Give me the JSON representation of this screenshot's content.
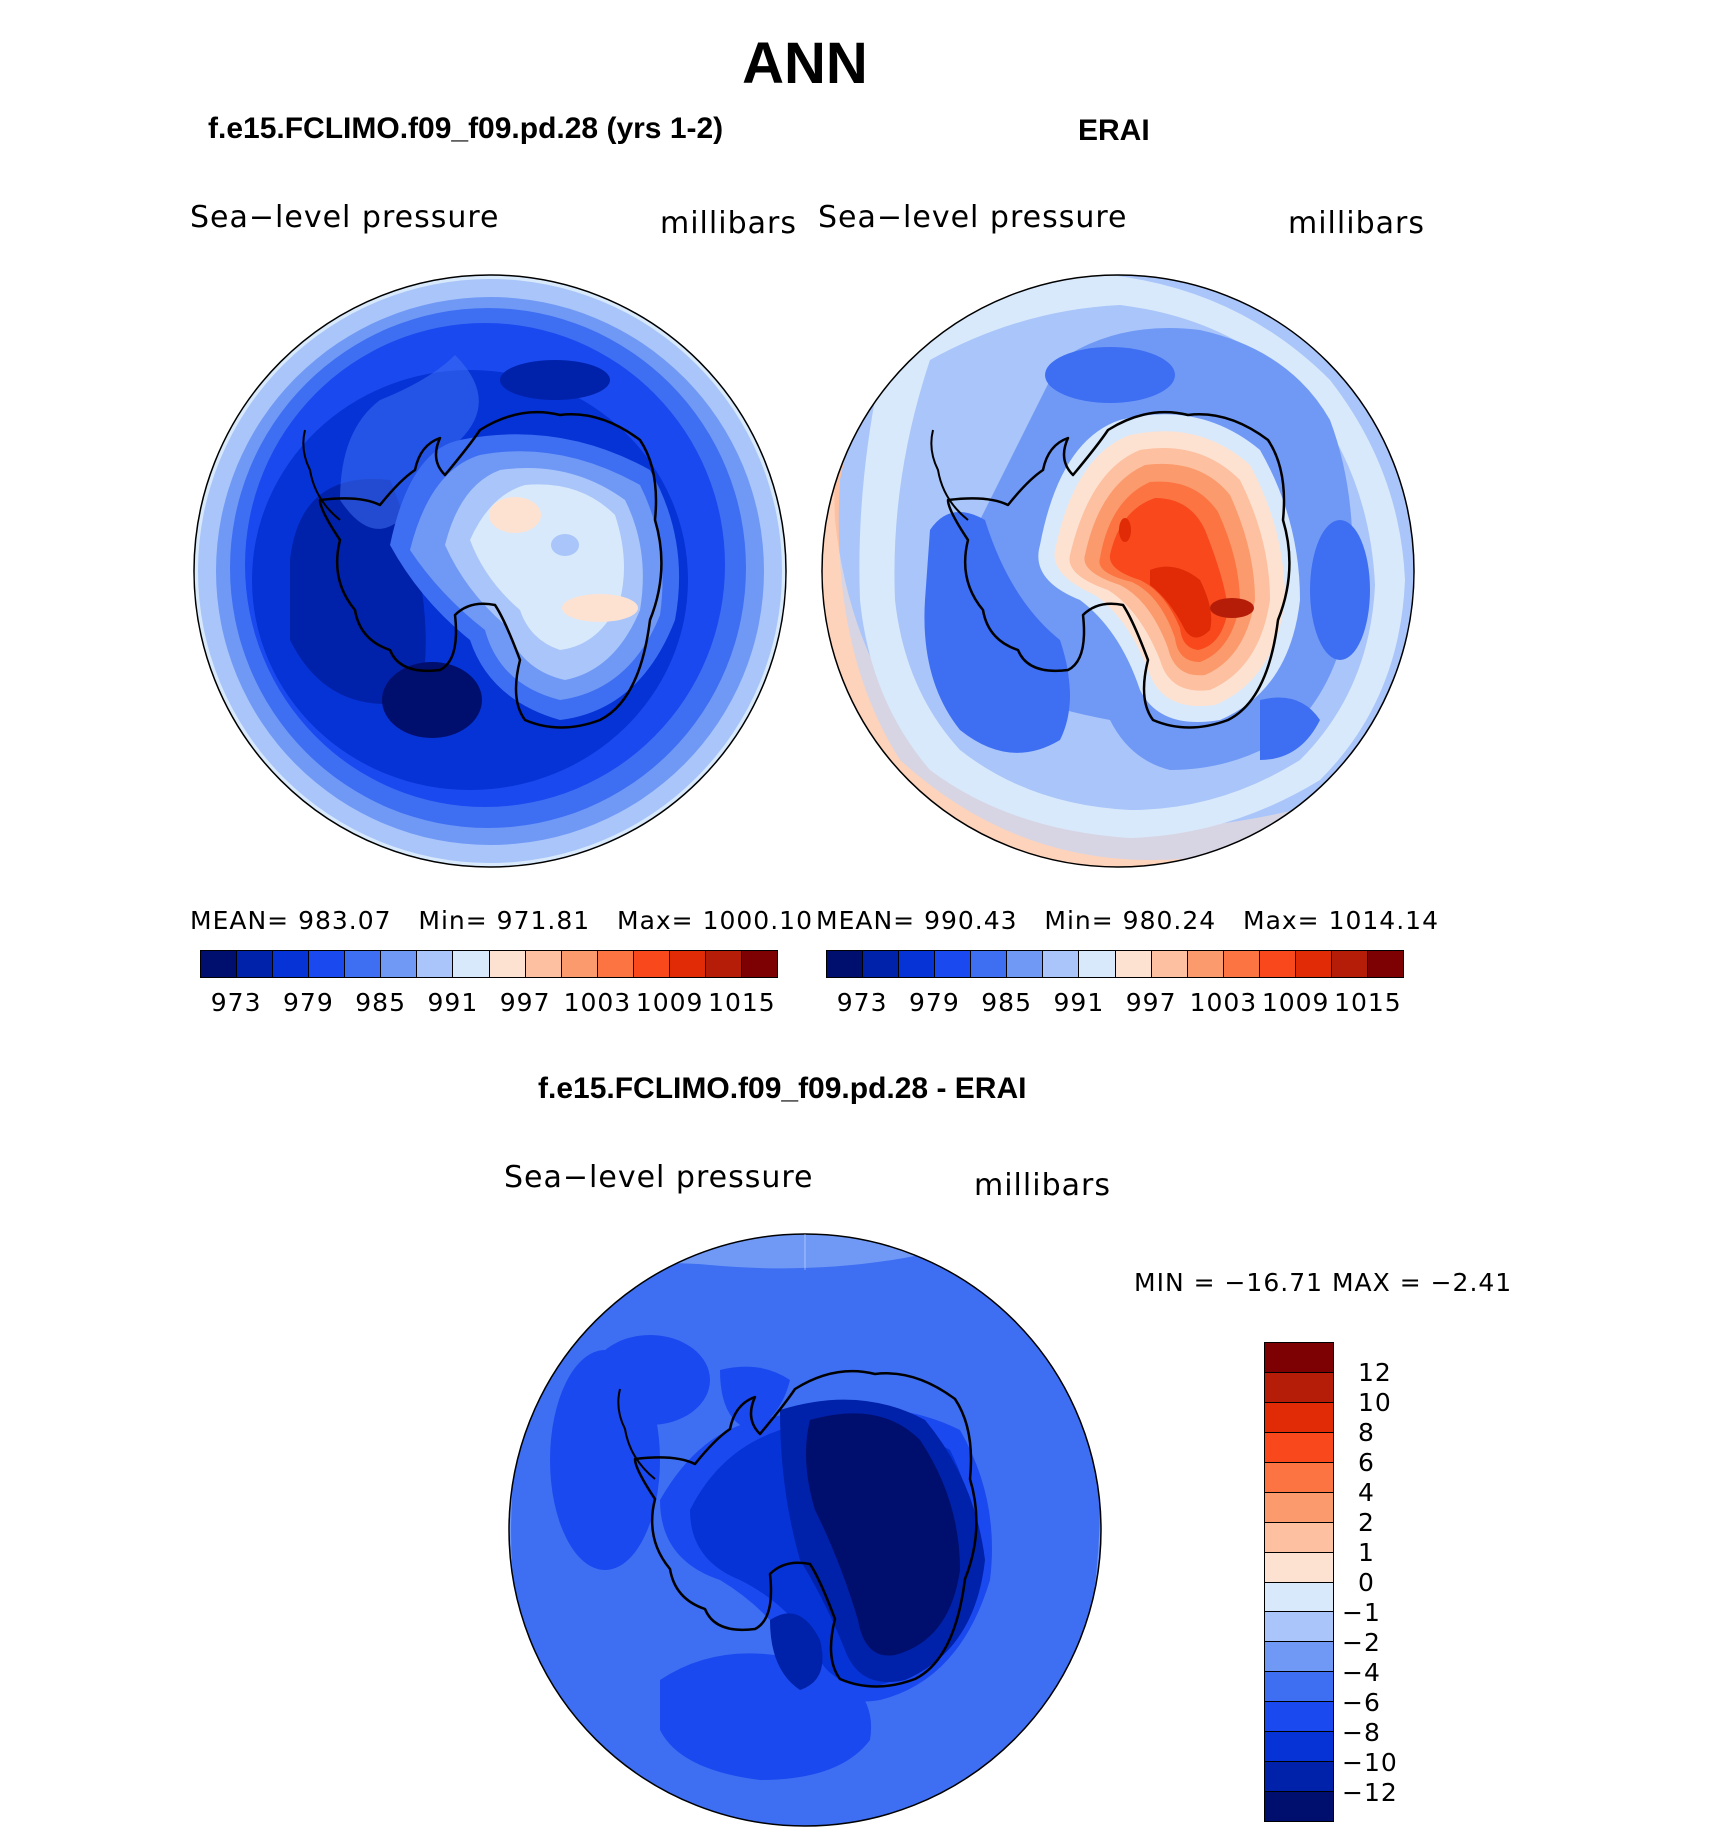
{
  "main_title": "ANN",
  "panels": [
    {
      "title": "f.e15.FCLIMO.f09_f09.pd.28 (yrs 1-2)",
      "variable": "Sea−level pressure",
      "units": "millibars",
      "stats": {
        "mean_label": "MEAN=",
        "mean": "983.07",
        "min_label": "Min=",
        "min": "971.81",
        "max_label": "Max=",
        "max": "1000.10"
      }
    },
    {
      "title": "ERAI",
      "variable": "Sea−level pressure",
      "units": "millibars",
      "stats": {
        "mean_label": "MEAN=",
        "mean": "990.43",
        "min_label": "Min=",
        "min": "980.24",
        "max_label": "Max=",
        "max": "1014.14"
      }
    },
    {
      "title": "f.e15.FCLIMO.f09_f09.pd.28 - ERAI",
      "variable": "Sea−level pressure",
      "units": "millibars",
      "stats_text": "MIN = −16.71  MAX =   −2.41"
    }
  ],
  "colorbar_abs": {
    "ticks": [
      "973",
      "979",
      "985",
      "991",
      "997",
      "1003",
      "1009",
      "1015"
    ],
    "colors": [
      "#000f6d",
      "#0021a9",
      "#0533d6",
      "#1a49ef",
      "#3e6ff2",
      "#7099f6",
      "#a9c5f9",
      "#d8e9fb",
      "#fde2d2",
      "#fdc0a0",
      "#fb9a6c",
      "#fb7442",
      "#f8481c",
      "#e02b06",
      "#b51d08",
      "#7d0002"
    ]
  },
  "colorbar_diff": {
    "ticks": [
      "12",
      "10",
      "8",
      "6",
      "4",
      "2",
      "1",
      "0",
      "−1",
      "−2",
      "−4",
      "−6",
      "−8",
      "−10",
      "−12"
    ],
    "colors": [
      "#7d0002",
      "#b51d08",
      "#e02b06",
      "#f8481c",
      "#fb7442",
      "#fb9a6c",
      "#fdc0a0",
      "#fde2d2",
      "#d8e9fb",
      "#a9c5f9",
      "#7099f6",
      "#3e6ff2",
      "#1a49ef",
      "#0533d6",
      "#0021a9",
      "#000f6d"
    ]
  }
}
